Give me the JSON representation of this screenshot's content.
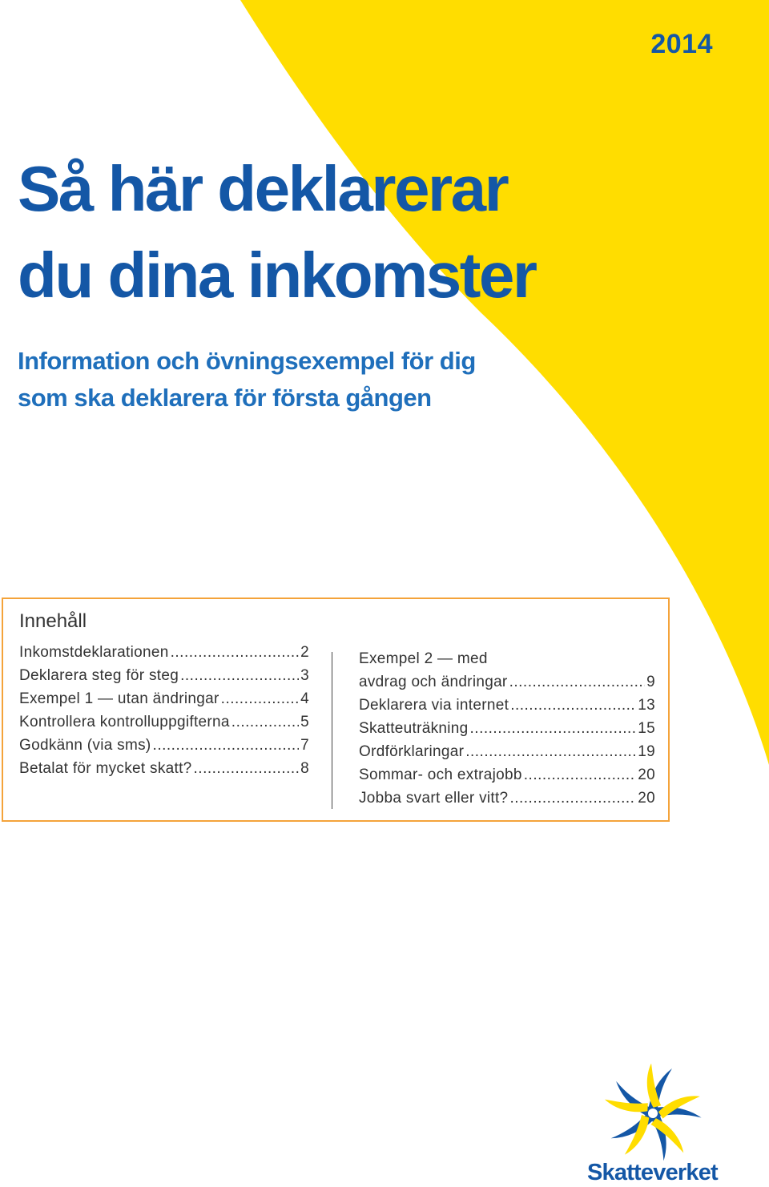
{
  "year": "2014",
  "title": {
    "line1": "Så här deklarerar",
    "line2": "du dina inkomster"
  },
  "subtitle": {
    "line1": "Information och övningsexempel för dig",
    "line2": "som ska deklarera för första gången"
  },
  "toc": {
    "heading": "Innehåll",
    "left": [
      {
        "label": "Inkomstdeklarationen",
        "page": "2"
      },
      {
        "label": "Deklarera steg för steg",
        "page": "3"
      },
      {
        "label": "Exempel 1 — utan ändringar",
        "page": "4"
      },
      {
        "label": "Kontrollera kontrolluppgifterna",
        "page": "5"
      },
      {
        "label": "Godkänn (via sms)",
        "page": "7"
      },
      {
        "label": "Betalat för mycket skatt?",
        "page": "8"
      }
    ],
    "right": [
      {
        "label_line1": "Exempel 2 — med",
        "label": "avdrag och ändringar",
        "page": "9"
      },
      {
        "label": "Deklarera via internet",
        "page": "13"
      },
      {
        "label": "Skatteuträkning",
        "page": "15"
      },
      {
        "label": "Ordförklaringar",
        "page": "19"
      },
      {
        "label": "Sommar- och extrajobb",
        "page": "20"
      },
      {
        "label": "Jobba svart eller vitt?",
        "page": "20"
      }
    ]
  },
  "logo": {
    "text": "Skatteverket",
    "icon": "skatteverket-crown-logo-icon"
  },
  "colors": {
    "brand_blue": "#1457a6",
    "accent_yellow": "#ffdd00",
    "toc_border": "#f4a33a"
  }
}
